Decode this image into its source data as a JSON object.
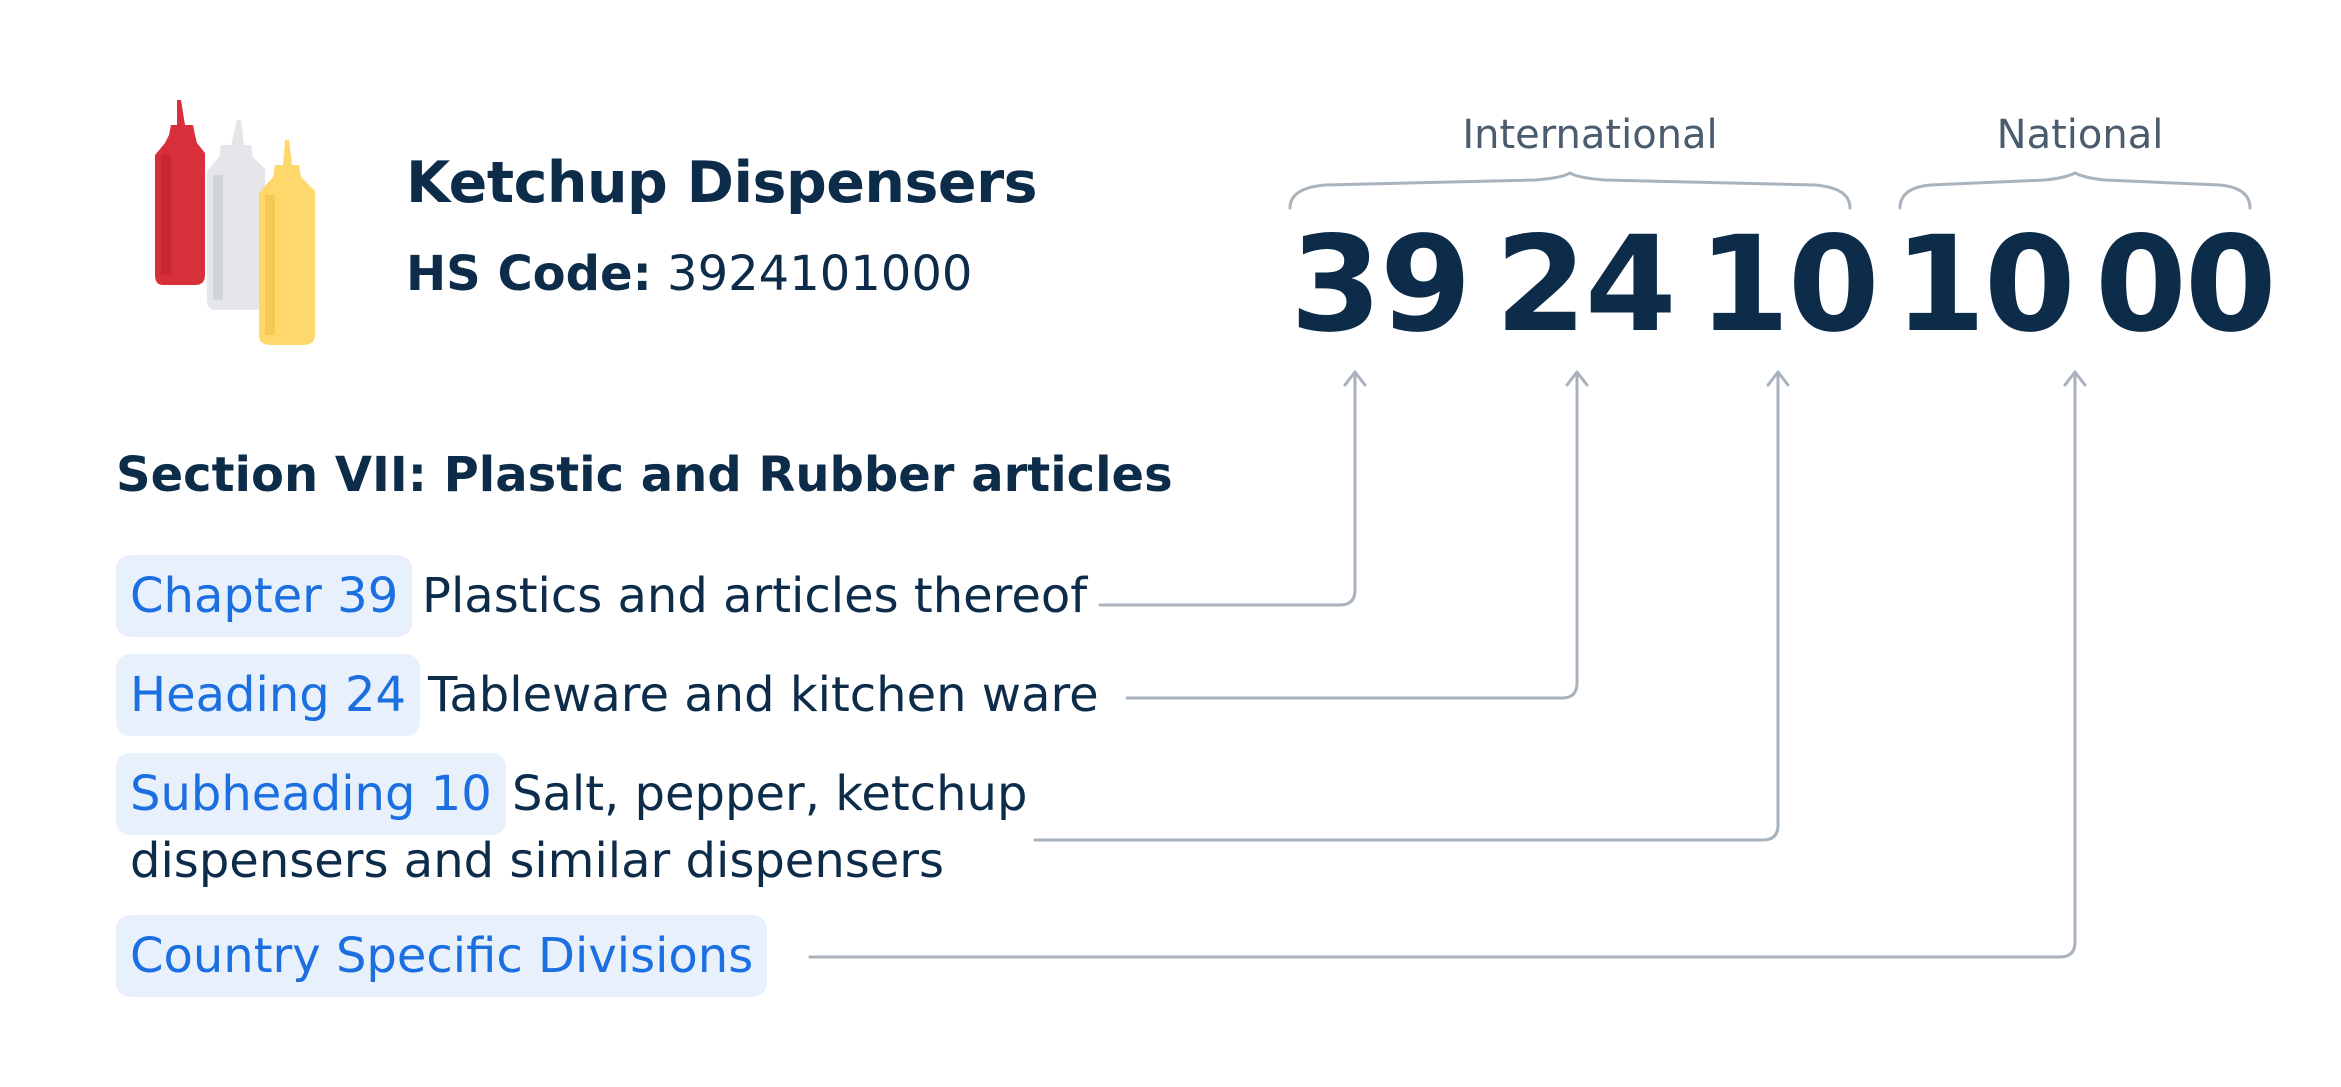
{
  "product": {
    "title": "Ketchup Dispensers",
    "hs_label": "HS Code:",
    "hs_code": "3924101000",
    "icon": "condiment-bottles-icon",
    "bottle_colors": [
      "#d8303a",
      "#e4e6ea",
      "#ffd86b"
    ]
  },
  "section": {
    "title": "Section VII: Plastic and Rubber articles"
  },
  "rows": {
    "chapter": {
      "tag": "Chapter 39",
      "desc": "Plastics and articles thereof"
    },
    "heading": {
      "tag": "Heading 24",
      "desc": "Tableware and kitchen ware"
    },
    "subheading": {
      "tag": "Subheading 10",
      "desc_line1": "Salt, pepper, ketchup",
      "desc_line2": "dispensers and similar dispensers"
    },
    "country": {
      "tag": "Country Specific Divisions"
    }
  },
  "code": {
    "international_label": "International",
    "national_label": "National",
    "groups": [
      "39",
      "24",
      "10",
      "10",
      "00"
    ]
  },
  "colors": {
    "text": "#0d2c4a",
    "tag_bg": "#e7f0fb",
    "tag_text": "#1c6fe0",
    "connector": "#a9b3bd"
  }
}
